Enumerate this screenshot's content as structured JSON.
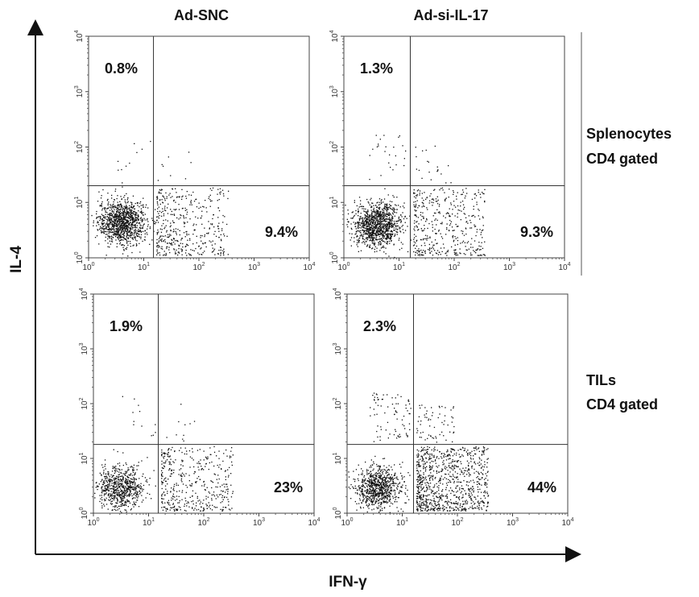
{
  "figure": {
    "y_axis_label": "IL-4",
    "x_axis_label": "IFN-γ",
    "columns": [
      "Ad-SNC",
      "Ad-si-IL-17"
    ],
    "rows": [
      {
        "line1": "Splenocytes",
        "line2": "CD4 gated"
      },
      {
        "line1": "TILs",
        "line2": "CD4 gated"
      }
    ],
    "tick_labels": {
      "base": "10",
      "exponents": [
        "0",
        "1",
        "2",
        "3",
        "4"
      ]
    }
  },
  "chart_data": [
    {
      "type": "scatter",
      "name": "",
      "sample": "Ad-SNC",
      "population": "Splenocytes CD4 gated",
      "xlabel": "IFN-γ",
      "ylabel": "IL-4",
      "scale": "log",
      "xlim": [
        1,
        10000
      ],
      "ylim": [
        1,
        10000
      ],
      "gate": {
        "x": 15,
        "y": 20
      },
      "quadrant_labels": {
        "upper_left": "0.8%",
        "lower_right": "9.4%"
      },
      "points_shown": {
        "main_cluster_center": [
          4,
          4.5
        ],
        "main_count": 1100,
        "lower_right_count": 420,
        "upper_left_count": 10
      }
    },
    {
      "type": "scatter",
      "name": "",
      "sample": "Ad-si-IL-17",
      "population": "Splenocytes CD4 gated",
      "xlabel": "IFN-γ",
      "ylabel": "IL-4",
      "scale": "log",
      "xlim": [
        1,
        10000
      ],
      "ylim": [
        1,
        10000
      ],
      "gate": {
        "x": 16,
        "y": 20
      },
      "quadrant_labels": {
        "upper_left": "1.3%",
        "lower_right": "9.3%"
      },
      "points_shown": {
        "main_cluster_center": [
          4,
          4
        ],
        "main_count": 1100,
        "lower_right_count": 420,
        "upper_left_count": 25
      }
    },
    {
      "type": "scatter",
      "name": "",
      "sample": "Ad-SNC",
      "population": "TILs CD4 gated",
      "xlabel": "IFN-γ",
      "ylabel": "IL-4",
      "scale": "log",
      "xlim": [
        1,
        10000
      ],
      "ylim": [
        1,
        10000
      ],
      "gate": {
        "x": 15,
        "y": 18
      },
      "quadrant_labels": {
        "upper_left": "1.9%",
        "lower_right": "23%"
      },
      "points_shown": {
        "main_cluster_center": [
          3,
          3
        ],
        "main_count": 700,
        "lower_right_count": 420,
        "upper_left_count": 12
      }
    },
    {
      "type": "scatter",
      "name": "",
      "sample": "Ad-si-IL-17",
      "population": "TILs CD4 gated",
      "xlabel": "IFN-γ",
      "ylabel": "IL-4",
      "scale": "log",
      "xlim": [
        1,
        10000
      ],
      "ylim": [
        1,
        10000
      ],
      "gate": {
        "x": 16,
        "y": 18
      },
      "quadrant_labels": {
        "upper_left": "2.3%",
        "lower_right": "44%"
      },
      "points_shown": {
        "main_cluster_center": [
          3.5,
          3
        ],
        "main_count": 800,
        "lower_right_count": 900,
        "upper_left_count": 80
      }
    }
  ]
}
